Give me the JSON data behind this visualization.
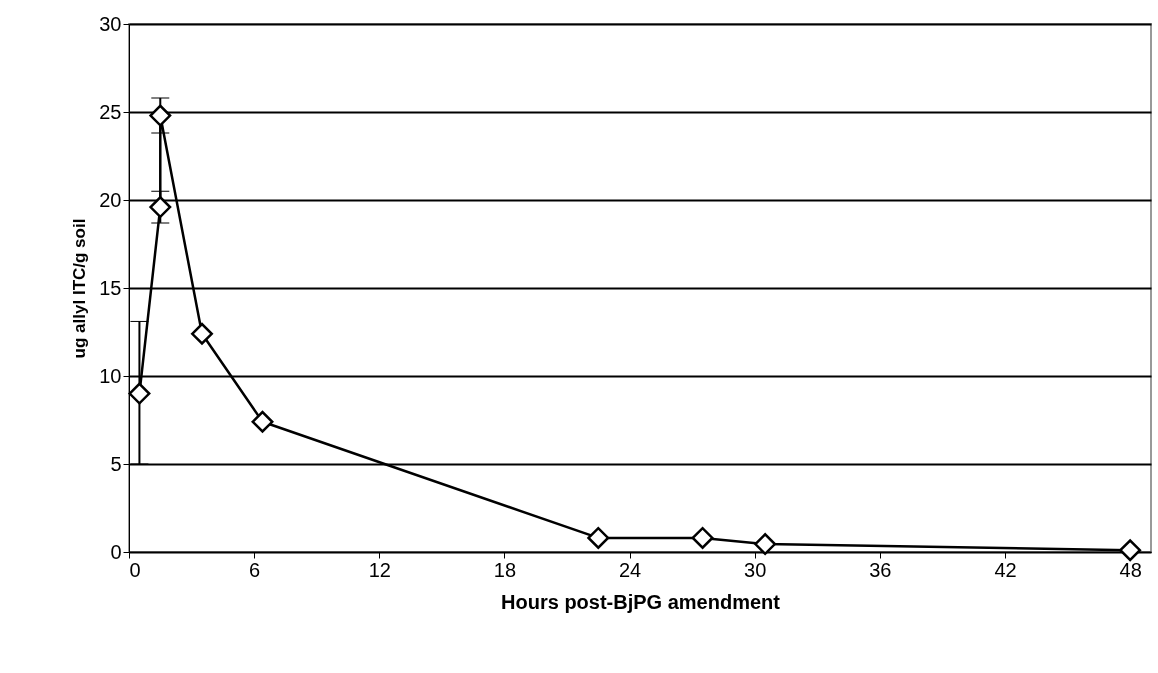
{
  "chart_data": {
    "type": "line",
    "xlabel": "Hours post-BjPG amendment",
    "ylabel": "ug allyl ITC/g soil",
    "x": [
      0.5,
      1.5,
      1.5,
      3.5,
      6.4,
      22.5,
      27.5,
      30.5,
      48
    ],
    "series": [
      {
        "color": "#000000",
        "values": [
          9,
          19.6,
          24.8,
          12.4,
          7.4,
          0.8,
          0.8,
          0.45,
          0.1
        ],
        "errors": [
          [
            5,
            13.1
          ],
          0.9,
          1,
          null,
          null,
          null,
          null,
          null,
          null
        ]
      }
    ],
    "xlim": [
      0,
      49
    ],
    "xticks": [
      0,
      6,
      12,
      18,
      24,
      30,
      36,
      42,
      48
    ],
    "ylim": [
      0,
      30
    ],
    "yticks": [
      0,
      5,
      10,
      15,
      20,
      25,
      30
    ],
    "grid": "y",
    "marker": "diamond",
    "line_style": "solid"
  }
}
